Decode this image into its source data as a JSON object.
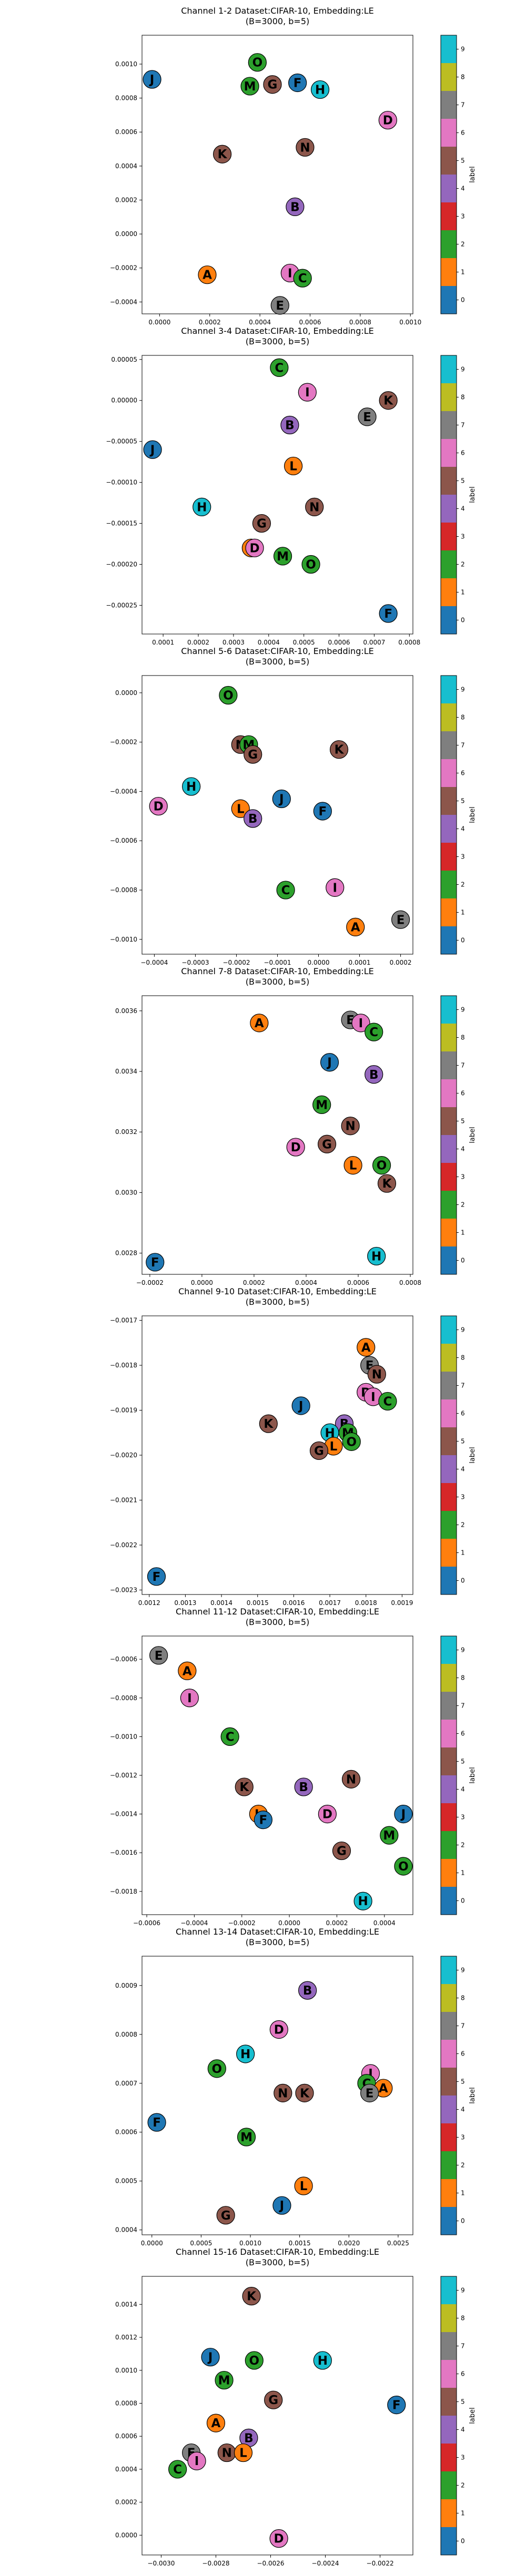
{
  "label_colors": [
    "#1f77b4",
    "#ff7f0e",
    "#2ca02c",
    "#d62728",
    "#9467bd",
    "#8c564b",
    "#e377c2",
    "#7f7f7f",
    "#bcbd22",
    "#17becf"
  ],
  "colorbar": {
    "label": "label",
    "ticks": [
      "0",
      "1",
      "2",
      "3",
      "4",
      "5",
      "6",
      "7",
      "8",
      "9"
    ]
  },
  "chart_data": [
    {
      "type": "scatter",
      "title": "Channel 1-2 Dataset:CIFAR-10, Embedding:LE",
      "subtitle": "(B=3000, b=5)",
      "xticks": [
        "0.0000",
        "0.0002",
        "0.0004",
        "0.0006",
        "0.0008",
        "0.0010"
      ],
      "yticks": [
        "−0.0004",
        "−0.0002",
        "0.0000",
        "0.0002",
        "0.0004",
        "0.0006",
        "0.0008",
        "0.0010"
      ],
      "xlim": [
        -7e-05,
        0.00101
      ],
      "ylim": [
        -0.00047,
        0.00117
      ],
      "grid": false,
      "points": [
        {
          "letter": "J",
          "label": 0,
          "x": -3e-05,
          "y": 0.00091
        },
        {
          "letter": "O",
          "label": 2,
          "x": 0.00039,
          "y": 0.00101
        },
        {
          "letter": "M",
          "label": 2,
          "x": 0.00036,
          "y": 0.00087
        },
        {
          "letter": "G",
          "label": 5,
          "x": 0.00045,
          "y": 0.00088
        },
        {
          "letter": "F",
          "label": 0,
          "x": 0.00055,
          "y": 0.00089
        },
        {
          "letter": "H",
          "label": 9,
          "x": 0.00064,
          "y": 0.00085
        },
        {
          "letter": "D",
          "label": 6,
          "x": 0.00091,
          "y": 0.00067
        },
        {
          "letter": "N",
          "label": 5,
          "x": 0.00058,
          "y": 0.00051
        },
        {
          "letter": "K",
          "label": 5,
          "x": 0.00025,
          "y": 0.00047
        },
        {
          "letter": "B",
          "label": 4,
          "x": 0.00054,
          "y": 0.00016
        },
        {
          "letter": "A",
          "label": 1,
          "x": 0.00019,
          "y": -0.00024
        },
        {
          "letter": "I",
          "label": 6,
          "x": 0.00052,
          "y": -0.00023
        },
        {
          "letter": "C",
          "label": 2,
          "x": 0.00057,
          "y": -0.00026
        },
        {
          "letter": "E",
          "label": 7,
          "x": 0.00048,
          "y": -0.00042
        }
      ]
    },
    {
      "type": "scatter",
      "title": "Channel 3-4 Dataset:CIFAR-10, Embedding:LE",
      "subtitle": "(B=3000, b=5)",
      "xticks": [
        "0.0001",
        "0.0002",
        "0.0003",
        "0.0004",
        "0.0005",
        "0.0006",
        "0.0007",
        "0.0008"
      ],
      "yticks": [
        "−0.00025",
        "−0.00020",
        "−0.00015",
        "−0.00010",
        "−0.00005",
        "0.00000",
        "0.00005"
      ],
      "xlim": [
        4e-05,
        0.00081
      ],
      "ylim": [
        -0.000285,
        5.5e-05
      ],
      "grid": false,
      "points": [
        {
          "letter": "C",
          "label": 2,
          "x": 0.00043,
          "y": 4e-05
        },
        {
          "letter": "I",
          "label": 6,
          "x": 0.00051,
          "y": 1e-05
        },
        {
          "letter": "K",
          "label": 5,
          "x": 0.00074,
          "y": 0.0
        },
        {
          "letter": "E",
          "label": 7,
          "x": 0.00068,
          "y": -2e-05
        },
        {
          "letter": "B",
          "label": 4,
          "x": 0.00046,
          "y": -3e-05
        },
        {
          "letter": "J",
          "label": 0,
          "x": 7e-05,
          "y": -6e-05
        },
        {
          "letter": "L",
          "label": 1,
          "x": 0.00047,
          "y": -8e-05
        },
        {
          "letter": "H",
          "label": 9,
          "x": 0.00021,
          "y": -0.00013
        },
        {
          "letter": "N",
          "label": 5,
          "x": 0.00053,
          "y": -0.00013
        },
        {
          "letter": "G",
          "label": 5,
          "x": 0.00038,
          "y": -0.00015
        },
        {
          "letter": "A",
          "label": 1,
          "x": 0.00035,
          "y": -0.00018
        },
        {
          "letter": "D",
          "label": 6,
          "x": 0.00036,
          "y": -0.00018
        },
        {
          "letter": "M",
          "label": 2,
          "x": 0.00044,
          "y": -0.00019
        },
        {
          "letter": "O",
          "label": 2,
          "x": 0.00052,
          "y": -0.0002
        },
        {
          "letter": "F",
          "label": 0,
          "x": 0.00074,
          "y": -0.00026
        }
      ]
    },
    {
      "type": "scatter",
      "title": "Channel 5-6 Dataset:CIFAR-10, Embedding:LE",
      "subtitle": "(B=3000, b=5)",
      "xticks": [
        "−0.0004",
        "−0.0003",
        "−0.0002",
        "−0.0001",
        "0.0000",
        "0.0001",
        "0.0002"
      ],
      "yticks": [
        "−0.0010",
        "−0.0008",
        "−0.0006",
        "−0.0004",
        "−0.0002",
        "0.0000"
      ],
      "xlim": [
        -0.00043,
        0.00023
      ],
      "ylim": [
        -0.00106,
        7e-05
      ],
      "grid": false,
      "points": [
        {
          "letter": "O",
          "label": 2,
          "x": -0.00022,
          "y": -1e-05
        },
        {
          "letter": "N",
          "label": 5,
          "x": -0.00019,
          "y": -0.00021
        },
        {
          "letter": "M",
          "label": 2,
          "x": -0.00017,
          "y": -0.00021
        },
        {
          "letter": "G",
          "label": 5,
          "x": -0.00016,
          "y": -0.00025
        },
        {
          "letter": "K",
          "label": 5,
          "x": 5e-05,
          "y": -0.00023
        },
        {
          "letter": "H",
          "label": 9,
          "x": -0.00031,
          "y": -0.00038
        },
        {
          "letter": "D",
          "label": 6,
          "x": -0.00039,
          "y": -0.00046
        },
        {
          "letter": "L",
          "label": 1,
          "x": -0.00019,
          "y": -0.00047
        },
        {
          "letter": "J",
          "label": 0,
          "x": -9e-05,
          "y": -0.00043
        },
        {
          "letter": "B",
          "label": 4,
          "x": -0.00016,
          "y": -0.00051
        },
        {
          "letter": "F",
          "label": 0,
          "x": 1e-05,
          "y": -0.00048
        },
        {
          "letter": "I",
          "label": 6,
          "x": 4e-05,
          "y": -0.00079
        },
        {
          "letter": "C",
          "label": 2,
          "x": -8e-05,
          "y": -0.0008
        },
        {
          "letter": "A",
          "label": 1,
          "x": 9e-05,
          "y": -0.00095
        },
        {
          "letter": "E",
          "label": 7,
          "x": 0.0002,
          "y": -0.00092
        }
      ]
    },
    {
      "type": "scatter",
      "title": "Channel 7-8 Dataset:CIFAR-10, Embedding:LE",
      "subtitle": "(B=3000, b=5)",
      "xticks": [
        "−0.0002",
        "0.0000",
        "0.0002",
        "0.0004",
        "0.0006",
        "0.0008"
      ],
      "yticks": [
        "0.0028",
        "0.0030",
        "0.0032",
        "0.0034",
        "0.0036"
      ],
      "xlim": [
        -0.00023,
        0.00081
      ],
      "ylim": [
        0.00273,
        0.00365
      ],
      "grid": false,
      "points": [
        {
          "letter": "A",
          "label": 1,
          "x": 0.00022,
          "y": 0.00356
        },
        {
          "letter": "E",
          "label": 7,
          "x": 0.00057,
          "y": 0.00357
        },
        {
          "letter": "I",
          "label": 6,
          "x": 0.00061,
          "y": 0.00356
        },
        {
          "letter": "C",
          "label": 2,
          "x": 0.00066,
          "y": 0.00353
        },
        {
          "letter": "J",
          "label": 0,
          "x": 0.00049,
          "y": 0.00343
        },
        {
          "letter": "B",
          "label": 4,
          "x": 0.00066,
          "y": 0.00339
        },
        {
          "letter": "M",
          "label": 2,
          "x": 0.00046,
          "y": 0.00329
        },
        {
          "letter": "N",
          "label": 5,
          "x": 0.00057,
          "y": 0.00322
        },
        {
          "letter": "D",
          "label": 6,
          "x": 0.00036,
          "y": 0.00315
        },
        {
          "letter": "G",
          "label": 5,
          "x": 0.00048,
          "y": 0.00316
        },
        {
          "letter": "L",
          "label": 1,
          "x": 0.00058,
          "y": 0.00309
        },
        {
          "letter": "O",
          "label": 2,
          "x": 0.00069,
          "y": 0.00309
        },
        {
          "letter": "K",
          "label": 5,
          "x": 0.00071,
          "y": 0.00303
        },
        {
          "letter": "F",
          "label": 0,
          "x": -0.00018,
          "y": 0.00277
        },
        {
          "letter": "H",
          "label": 9,
          "x": 0.00067,
          "y": 0.00279
        }
      ]
    },
    {
      "type": "scatter",
      "title": "Channel 9-10 Dataset:CIFAR-10, Embedding:LE",
      "subtitle": "(B=3000, b=5)",
      "xticks": [
        "0.0012",
        "0.0013",
        "0.0014",
        "0.0015",
        "0.0016",
        "0.0017",
        "0.0018",
        "0.0019"
      ],
      "yticks": [
        "−0.0023",
        "−0.0022",
        "−0.0021",
        "−0.0020",
        "−0.0019",
        "−0.0018",
        "−0.0017"
      ],
      "xlim": [
        0.00118,
        0.00193
      ],
      "ylim": [
        -0.00231,
        -0.00169
      ],
      "grid": false,
      "points": [
        {
          "letter": "A",
          "label": 1,
          "x": 0.0018,
          "y": -0.00176
        },
        {
          "letter": "E",
          "label": 7,
          "x": 0.00181,
          "y": -0.0018
        },
        {
          "letter": "N",
          "label": 5,
          "x": 0.00183,
          "y": -0.00182
        },
        {
          "letter": "D",
          "label": 6,
          "x": 0.0018,
          "y": -0.00186
        },
        {
          "letter": "I",
          "label": 6,
          "x": 0.00182,
          "y": -0.00187
        },
        {
          "letter": "C",
          "label": 2,
          "x": 0.00186,
          "y": -0.00188
        },
        {
          "letter": "J",
          "label": 0,
          "x": 0.00162,
          "y": -0.00189
        },
        {
          "letter": "K",
          "label": 5,
          "x": 0.00153,
          "y": -0.00193
        },
        {
          "letter": "B",
          "label": 4,
          "x": 0.00174,
          "y": -0.00193
        },
        {
          "letter": "H",
          "label": 9,
          "x": 0.0017,
          "y": -0.00195
        },
        {
          "letter": "M",
          "label": 2,
          "x": 0.00175,
          "y": -0.00195
        },
        {
          "letter": "O",
          "label": 2,
          "x": 0.00176,
          "y": -0.00197
        },
        {
          "letter": "L",
          "label": 1,
          "x": 0.00171,
          "y": -0.00198
        },
        {
          "letter": "G",
          "label": 5,
          "x": 0.00167,
          "y": -0.00199
        },
        {
          "letter": "F",
          "label": 0,
          "x": 0.00122,
          "y": -0.00227
        }
      ]
    },
    {
      "type": "scatter",
      "title": "Channel 11-12 Dataset:CIFAR-10, Embedding:LE",
      "subtitle": "(B=3000, b=5)",
      "xticks": [
        "−0.0006",
        "−0.0004",
        "−0.0002",
        "0.0000",
        "0.0002",
        "0.0004"
      ],
      "yticks": [
        "−0.0018",
        "−0.0016",
        "−0.0014",
        "−0.0012",
        "−0.0010",
        "−0.0008",
        "−0.0006"
      ],
      "xlim": [
        -0.00062,
        0.00052
      ],
      "ylim": [
        -0.00192,
        -0.00048
      ],
      "grid": false,
      "points": [
        {
          "letter": "E",
          "label": 7,
          "x": -0.00055,
          "y": -0.00058
        },
        {
          "letter": "A",
          "label": 1,
          "x": -0.00043,
          "y": -0.00066
        },
        {
          "letter": "I",
          "label": 6,
          "x": -0.00042,
          "y": -0.0008
        },
        {
          "letter": "C",
          "label": 2,
          "x": -0.00025,
          "y": -0.001
        },
        {
          "letter": "N",
          "label": 5,
          "x": 0.00026,
          "y": -0.00122
        },
        {
          "letter": "K",
          "label": 5,
          "x": -0.00019,
          "y": -0.00126
        },
        {
          "letter": "B",
          "label": 4,
          "x": 6e-05,
          "y": -0.00126
        },
        {
          "letter": "L",
          "label": 1,
          "x": -0.00013,
          "y": -0.0014
        },
        {
          "letter": "F",
          "label": 0,
          "x": -0.00011,
          "y": -0.00143
        },
        {
          "letter": "D",
          "label": 6,
          "x": 0.00016,
          "y": -0.0014
        },
        {
          "letter": "J",
          "label": 0,
          "x": 0.00048,
          "y": -0.0014
        },
        {
          "letter": "M",
          "label": 2,
          "x": 0.00042,
          "y": -0.00151
        },
        {
          "letter": "G",
          "label": 5,
          "x": 0.00022,
          "y": -0.00159
        },
        {
          "letter": "O",
          "label": 2,
          "x": 0.00048,
          "y": -0.00167
        },
        {
          "letter": "H",
          "label": 9,
          "x": 0.00031,
          "y": -0.00185
        }
      ]
    },
    {
      "type": "scatter",
      "title": "Channel 13-14 Dataset:CIFAR-10, Embedding:LE",
      "subtitle": "(B=3000, b=5)",
      "xticks": [
        "0.0000",
        "0.0005",
        "0.0010",
        "0.0015",
        "0.0020",
        "0.0025"
      ],
      "yticks": [
        "0.0004",
        "0.0005",
        "0.0006",
        "0.0007",
        "0.0008",
        "0.0009"
      ],
      "xlim": [
        -0.0001,
        0.00265
      ],
      "ylim": [
        0.00039,
        0.00096
      ],
      "grid": false,
      "points": [
        {
          "letter": "B",
          "label": 4,
          "x": 0.00158,
          "y": 0.00089
        },
        {
          "letter": "D",
          "label": 6,
          "x": 0.00129,
          "y": 0.00081
        },
        {
          "letter": "H",
          "label": 9,
          "x": 0.00095,
          "y": 0.00076
        },
        {
          "letter": "O",
          "label": 2,
          "x": 0.00066,
          "y": 0.00073
        },
        {
          "letter": "I",
          "label": 6,
          "x": 0.00222,
          "y": 0.00072
        },
        {
          "letter": "C",
          "label": 2,
          "x": 0.00218,
          "y": 0.0007
        },
        {
          "letter": "A",
          "label": 1,
          "x": 0.00235,
          "y": 0.00069
        },
        {
          "letter": "E",
          "label": 7,
          "x": 0.00221,
          "y": 0.00068
        },
        {
          "letter": "N",
          "label": 5,
          "x": 0.00133,
          "y": 0.00068
        },
        {
          "letter": "K",
          "label": 5,
          "x": 0.00155,
          "y": 0.00068
        },
        {
          "letter": "F",
          "label": 0,
          "x": 5e-05,
          "y": 0.00062
        },
        {
          "letter": "M",
          "label": 2,
          "x": 0.00096,
          "y": 0.00059
        },
        {
          "letter": "L",
          "label": 1,
          "x": 0.00154,
          "y": 0.00049
        },
        {
          "letter": "J",
          "label": 0,
          "x": 0.00132,
          "y": 0.00045
        },
        {
          "letter": "G",
          "label": 5,
          "x": 0.00075,
          "y": 0.00043
        }
      ]
    },
    {
      "type": "scatter",
      "title": "Channel 15-16 Dataset:CIFAR-10, Embedding:LE",
      "subtitle": "(B=3000, b=5)",
      "xticks": [
        "−0.0030",
        "−0.0028",
        "−0.0026",
        "−0.0024",
        "−0.0022"
      ],
      "yticks": [
        "0.0000",
        "0.0002",
        "0.0004",
        "0.0006",
        "0.0008",
        "0.0010",
        "0.0012",
        "0.0014"
      ],
      "xlim": [
        -0.00307,
        -0.00208
      ],
      "ylim": [
        -0.00012,
        0.00157
      ],
      "grid": false,
      "points": [
        {
          "letter": "K",
          "label": 5,
          "x": -0.00267,
          "y": 0.00145
        },
        {
          "letter": "J",
          "label": 0,
          "x": -0.00282,
          "y": 0.00108
        },
        {
          "letter": "O",
          "label": 2,
          "x": -0.00266,
          "y": 0.00106
        },
        {
          "letter": "H",
          "label": 9,
          "x": -0.00241,
          "y": 0.00106
        },
        {
          "letter": "M",
          "label": 2,
          "x": -0.00277,
          "y": 0.00094
        },
        {
          "letter": "G",
          "label": 5,
          "x": -0.00259,
          "y": 0.00082
        },
        {
          "letter": "F",
          "label": 0,
          "x": -0.00214,
          "y": 0.00079
        },
        {
          "letter": "A",
          "label": 1,
          "x": -0.0028,
          "y": 0.00068
        },
        {
          "letter": "B",
          "label": 4,
          "x": -0.00268,
          "y": 0.00059
        },
        {
          "letter": "E",
          "label": 7,
          "x": -0.00289,
          "y": 0.0005
        },
        {
          "letter": "N",
          "label": 5,
          "x": -0.00276,
          "y": 0.0005
        },
        {
          "letter": "L",
          "label": 1,
          "x": -0.0027,
          "y": 0.0005
        },
        {
          "letter": "I",
          "label": 6,
          "x": -0.00287,
          "y": 0.00045
        },
        {
          "letter": "C",
          "label": 2,
          "x": -0.00294,
          "y": 0.0004
        },
        {
          "letter": "D",
          "label": 6,
          "x": -0.00257,
          "y": -2e-05
        }
      ]
    }
  ]
}
